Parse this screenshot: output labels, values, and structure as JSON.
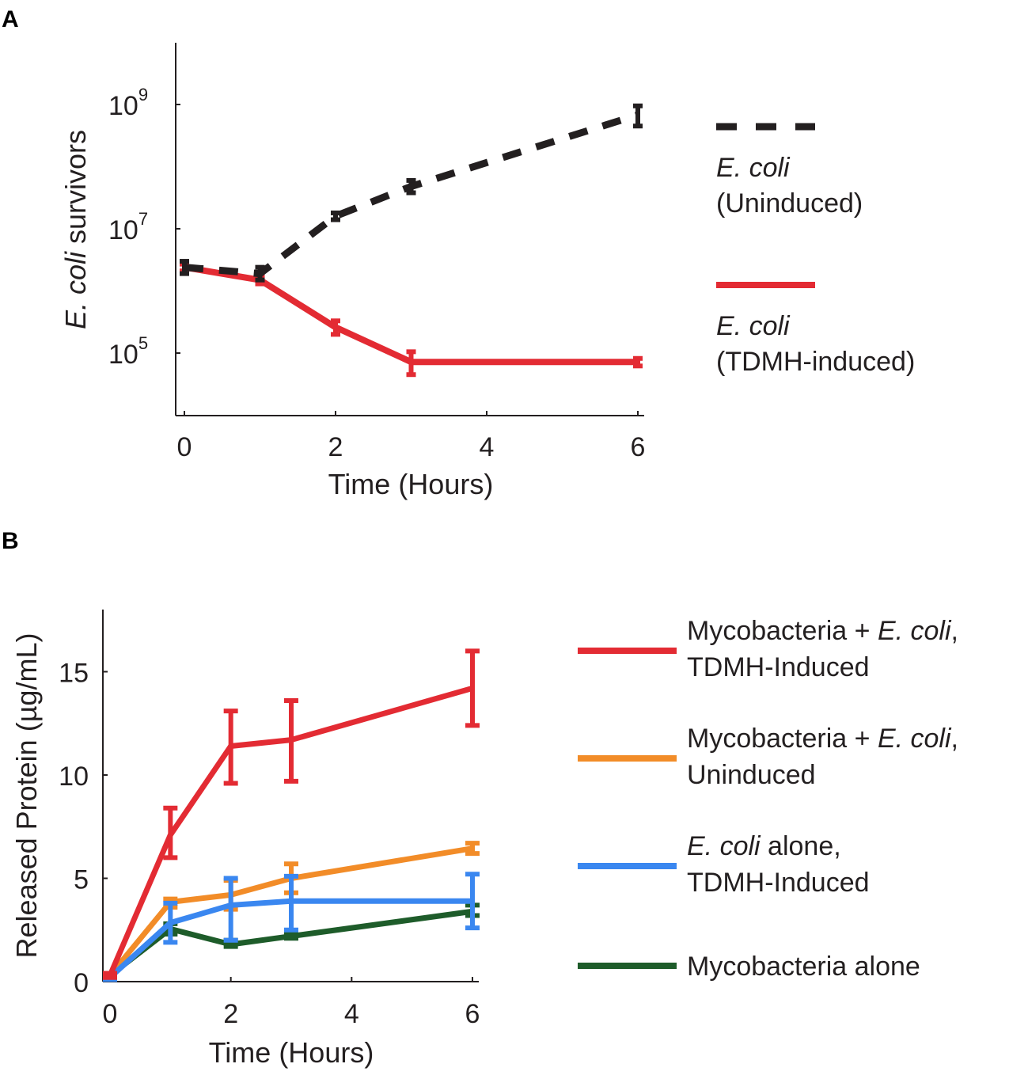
{
  "chart_data": [
    {
      "panel": "A",
      "type": "line",
      "yscale": "log",
      "xlabel": "Time (Hours)",
      "ylabel_italic": "E. coli",
      "ylabel_rest": " survivors",
      "xlim": [
        0,
        6
      ],
      "ylim_log10": [
        4.0,
        10.0
      ],
      "xticks": [
        0,
        2,
        4,
        6
      ],
      "yticks_exp": [
        5,
        7,
        9
      ],
      "ytick_base": "10",
      "grid": false,
      "legend_position": "right",
      "series": [
        {
          "name_italic": "E. coli",
          "name_rest": "(Uninduced)",
          "color": "#231f20",
          "dash": true,
          "x": [
            0,
            1,
            2,
            3,
            6
          ],
          "values": [
            2400000,
            1900000,
            16000000,
            48000000,
            680000000
          ],
          "err_low": [
            1900000,
            1500000,
            14000000,
            38000000,
            450000000
          ],
          "err_high": [
            3000000,
            2400000,
            18000000,
            60000000,
            950000000
          ]
        },
        {
          "name_italic": "E. coli",
          "name_rest": "(TDMH-induced)",
          "color": "#e32b33",
          "dash": false,
          "x": [
            0,
            1,
            2,
            3,
            6
          ],
          "values": [
            2400000,
            1500000,
            260000,
            72000,
            72000
          ],
          "err_low": [
            2100000,
            1300000,
            200000,
            45000,
            62000
          ],
          "err_high": [
            2700000,
            1700000,
            330000,
            105000,
            82000
          ]
        }
      ]
    },
    {
      "panel": "B",
      "type": "line",
      "xlabel": "Time (Hours)",
      "ylabel": "Released Protein (µg/mL)",
      "xlim": [
        0,
        6
      ],
      "ylim": [
        0,
        18
      ],
      "xticks": [
        0,
        2,
        4,
        6
      ],
      "yticks": [
        0,
        5,
        10,
        15
      ],
      "grid": false,
      "legend_position": "right",
      "series": [
        {
          "name_line1_pre": "Mycobacteria + ",
          "name_line1_italic": "E. coli",
          "name_line1_post": ",",
          "name_line2": "TDMH-Induced",
          "color": "#e32b33",
          "x": [
            0,
            1,
            2,
            3,
            6
          ],
          "values": [
            0.3,
            7.1,
            11.4,
            11.7,
            14.2
          ],
          "err_low": [
            0.2,
            6.0,
            9.6,
            9.7,
            12.4
          ],
          "err_high": [
            0.4,
            8.4,
            13.1,
            13.6,
            16.0
          ]
        },
        {
          "name_line1_pre": "Mycobacteria + ",
          "name_line1_italic": "E. coli",
          "name_line1_post": ",",
          "name_line2": "Uninduced",
          "color": "#f28c28",
          "x": [
            0,
            1,
            2,
            3,
            6
          ],
          "values": [
            0.3,
            3.85,
            4.2,
            5.0,
            6.45
          ],
          "err_low": [
            0.2,
            3.6,
            3.5,
            4.3,
            6.2
          ],
          "err_high": [
            0.4,
            4.0,
            4.9,
            5.7,
            6.7
          ]
        },
        {
          "name_line1_pre": "",
          "name_line1_italic": "E. coli",
          "name_line1_post": " alone,",
          "name_line2": "TDMH-Induced",
          "color": "#3a87f0",
          "x": [
            0,
            1,
            2,
            3,
            6
          ],
          "values": [
            0.2,
            2.85,
            3.7,
            3.9,
            3.9
          ],
          "err_low": [
            0.1,
            1.9,
            2.0,
            2.5,
            2.6
          ],
          "err_high": [
            0.3,
            3.8,
            5.0,
            5.1,
            5.2
          ]
        },
        {
          "name_line1_pre": "Mycobacteria alone",
          "name_line1_italic": "",
          "name_line1_post": "",
          "name_line2": "",
          "color": "#1e5c2a",
          "x": [
            0,
            1,
            2,
            3,
            6
          ],
          "values": [
            0.3,
            2.55,
            1.8,
            2.2,
            3.4
          ],
          "err_low": [
            0.2,
            2.3,
            1.7,
            2.1,
            3.2
          ],
          "err_high": [
            0.4,
            2.8,
            2.0,
            2.3,
            3.7
          ]
        }
      ]
    }
  ],
  "panels": {
    "a_label": "A",
    "b_label": "B"
  }
}
